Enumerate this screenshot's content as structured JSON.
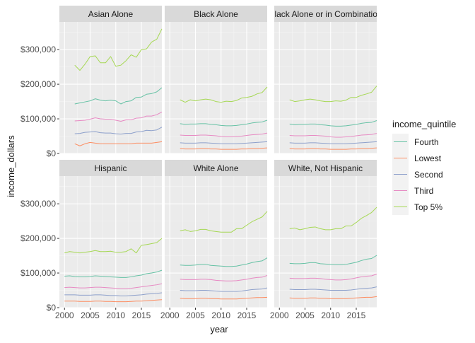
{
  "chart_data": {
    "type": "line",
    "facet_wrap": true,
    "x_label": "year",
    "y_label": "income_dollars",
    "x_range": [
      1999,
      2019
    ],
    "y_range": [
      0,
      380000
    ],
    "x_ticks": [
      2000,
      2005,
      2010,
      2015
    ],
    "y_ticks": [
      0,
      100000,
      200000,
      300000
    ],
    "y_tick_labels": [
      "$0",
      "$100,000",
      "$200,000",
      "$300,000"
    ],
    "grid": true,
    "legend": {
      "title": "income_quintile",
      "placement": "right",
      "entries": [
        "Fourth",
        "Lowest",
        "Second",
        "Third",
        "Top 5%"
      ]
    },
    "series_colors": {
      "Fourth": "#66c2a5",
      "Lowest": "#fc8d62",
      "Second": "#8da0cb",
      "Third": "#e78ac3",
      "Top 5%": "#a6d854"
    },
    "panels": [
      {
        "title": "Asian Alone",
        "x": [
          2002,
          2003,
          2004,
          2005,
          2006,
          2007,
          2008,
          2009,
          2010,
          2011,
          2012,
          2013,
          2014,
          2015,
          2016,
          2017,
          2018,
          2019
        ],
        "series": [
          {
            "name": "Fourth",
            "values": [
              143000,
              146000,
              149000,
              152000,
              158000,
              154000,
              152000,
              154000,
              152000,
              143000,
              150000,
              152000,
              162000,
              163000,
              171000,
              173000,
              178000,
              190000
            ]
          },
          {
            "name": "Lowest",
            "values": [
              28000,
              22000,
              28000,
              32000,
              30000,
              28000,
              28000,
              28000,
              28000,
              28000,
              28000,
              28000,
              30000,
              30000,
              30000,
              30000,
              32000,
              34000
            ]
          },
          {
            "name": "Second",
            "values": [
              57000,
              58000,
              61000,
              62000,
              63000,
              60000,
              59000,
              59000,
              57000,
              56000,
              58000,
              58000,
              62000,
              63000,
              67000,
              66000,
              68000,
              76000
            ]
          },
          {
            "name": "Third",
            "values": [
              94000,
              95000,
              96000,
              99000,
              103000,
              100000,
              99000,
              99000,
              96000,
              93000,
              97000,
              97000,
              102000,
              103000,
              108000,
              108000,
              112000,
              120000
            ]
          },
          {
            "name": "Top 5%",
            "values": [
              255000,
              240000,
              258000,
              280000,
              282000,
              262000,
              262000,
              280000,
              252000,
              255000,
              268000,
              285000,
              278000,
              300000,
              302000,
              322000,
              330000,
              360000
            ]
          }
        ]
      },
      {
        "title": "Black Alone",
        "x": [
          2002,
          2003,
          2004,
          2005,
          2006,
          2007,
          2008,
          2009,
          2010,
          2011,
          2012,
          2013,
          2014,
          2015,
          2016,
          2017,
          2018,
          2019
        ],
        "series": [
          {
            "name": "Fourth",
            "values": [
              86000,
              84000,
              85000,
              85000,
              86000,
              86000,
              84000,
              83000,
              81000,
              80000,
              80000,
              81000,
              83000,
              85000,
              88000,
              90000,
              91000,
              96000
            ]
          },
          {
            "name": "Lowest",
            "values": [
              14000,
              13000,
              13000,
              13000,
              14000,
              14000,
              13000,
              13000,
              12000,
              12000,
              12000,
              12000,
              13000,
              13000,
              14000,
              14000,
              15000,
              16000
            ]
          },
          {
            "name": "Second",
            "values": [
              31000,
              30000,
              30000,
              30000,
              31000,
              31000,
              30000,
              29000,
              28000,
              28000,
              28000,
              28000,
              29000,
              30000,
              31000,
              32000,
              33000,
              34000
            ]
          },
          {
            "name": "Third",
            "values": [
              53000,
              52000,
              52000,
              52000,
              53000,
              53000,
              52000,
              51000,
              49000,
              48000,
              48000,
              49000,
              50000,
              52000,
              54000,
              55000,
              56000,
              59000
            ]
          },
          {
            "name": "Top 5%",
            "values": [
              155000,
              148000,
              155000,
              152000,
              155000,
              157000,
              155000,
              150000,
              148000,
              151000,
              150000,
              153000,
              160000,
              162000,
              165000,
              172000,
              176000,
              192000
            ]
          }
        ]
      },
      {
        "title": "Black Alone or in Combination",
        "x": [
          2002,
          2003,
          2004,
          2005,
          2006,
          2007,
          2008,
          2009,
          2010,
          2011,
          2012,
          2013,
          2014,
          2015,
          2016,
          2017,
          2018,
          2019
        ],
        "series": [
          {
            "name": "Fourth",
            "values": [
              85000,
              83000,
              84000,
              84000,
              85000,
              85000,
              83000,
              82000,
              80000,
              79000,
              79000,
              80000,
              82000,
              84000,
              87000,
              89000,
              90000,
              95000
            ]
          },
          {
            "name": "Lowest",
            "values": [
              14000,
              13000,
              13000,
              13000,
              14000,
              14000,
              13000,
              13000,
              12000,
              12000,
              12000,
              12000,
              13000,
              13000,
              14000,
              14000,
              15000,
              16000
            ]
          },
          {
            "name": "Second",
            "values": [
              31000,
              30000,
              30000,
              30000,
              31000,
              31000,
              30000,
              29000,
              28000,
              28000,
              28000,
              28000,
              29000,
              30000,
              31000,
              32000,
              33000,
              34000
            ]
          },
          {
            "name": "Third",
            "values": [
              52000,
              51000,
              51000,
              51000,
              52000,
              52000,
              51000,
              50000,
              48000,
              47000,
              47000,
              48000,
              49000,
              51000,
              53000,
              54000,
              55000,
              58000
            ]
          },
          {
            "name": "Top 5%",
            "values": [
              155000,
              150000,
              152000,
              155000,
              157000,
              155000,
              152000,
              150000,
              150000,
              152000,
              151000,
              154000,
              162000,
              162000,
              168000,
              172000,
              177000,
              195000
            ]
          }
        ]
      },
      {
        "title": "Hispanic",
        "x": [
          2000,
          2001,
          2002,
          2003,
          2004,
          2005,
          2006,
          2007,
          2008,
          2009,
          2010,
          2011,
          2012,
          2013,
          2014,
          2015,
          2016,
          2017,
          2018,
          2019
        ],
        "series": [
          {
            "name": "Fourth",
            "values": [
              91000,
              92000,
              90000,
              89000,
              89000,
              90000,
              92000,
              91000,
              90000,
              89000,
              88000,
              87000,
              87000,
              89000,
              92000,
              94000,
              98000,
              100000,
              103000,
              108000
            ]
          },
          {
            "name": "Lowest",
            "values": [
              19000,
              19000,
              19000,
              18000,
              18000,
              18000,
              19000,
              19000,
              18000,
              18000,
              17000,
              17000,
              17000,
              18000,
              19000,
              19000,
              20000,
              21000,
              22000,
              23000
            ]
          },
          {
            "name": "Second",
            "values": [
              37000,
              37000,
              37000,
              36000,
              36000,
              36000,
              37000,
              37000,
              36000,
              35000,
              35000,
              34000,
              34000,
              35000,
              36000,
              37000,
              39000,
              40000,
              41000,
              43000
            ]
          },
          {
            "name": "Third",
            "values": [
              58000,
              59000,
              58000,
              57000,
              57000,
              58000,
              59000,
              59000,
              58000,
              57000,
              56000,
              55000,
              55000,
              56000,
              58000,
              60000,
              62000,
              64000,
              66000,
              69000
            ]
          },
          {
            "name": "Top 5%",
            "values": [
              158000,
              162000,
              160000,
              158000,
              160000,
              162000,
              165000,
              162000,
              162000,
              163000,
              160000,
              160000,
              162000,
              170000,
              158000,
              180000,
              182000,
              185000,
              188000,
              200000
            ]
          }
        ]
      },
      {
        "title": "White Alone",
        "x": [
          2002,
          2003,
          2004,
          2005,
          2006,
          2007,
          2008,
          2009,
          2010,
          2011,
          2012,
          2013,
          2014,
          2015,
          2016,
          2017,
          2018,
          2019
        ],
        "series": [
          {
            "name": "Fourth",
            "values": [
              123000,
              122000,
              122000,
              123000,
              125000,
              125000,
              122000,
              121000,
              120000,
              119000,
              119000,
              120000,
              123000,
              126000,
              130000,
              133000,
              135000,
              144000
            ]
          },
          {
            "name": "Lowest",
            "values": [
              27000,
              26000,
              26000,
              26000,
              27000,
              27000,
              26000,
              26000,
              25000,
              25000,
              25000,
              25000,
              26000,
              27000,
              28000,
              29000,
              29000,
              30000
            ]
          },
          {
            "name": "Second",
            "values": [
              50000,
              49000,
              49000,
              49000,
              50000,
              50000,
              49000,
              48000,
              47000,
              47000,
              47000,
              47000,
              48000,
              50000,
              52000,
              53000,
              54000,
              57000
            ]
          },
          {
            "name": "Third",
            "values": [
              82000,
              81000,
              81000,
              81000,
              82000,
              82000,
              81000,
              79000,
              78000,
              77000,
              77000,
              78000,
              80000,
              82000,
              85000,
              87000,
              88000,
              93000
            ]
          },
          {
            "name": "Top 5%",
            "values": [
              222000,
              225000,
              220000,
              222000,
              226000,
              226000,
              222000,
              220000,
              218000,
              218000,
              218000,
              228000,
              228000,
              238000,
              248000,
              255000,
              262000,
              278000
            ]
          }
        ]
      },
      {
        "title": "White, Not Hispanic",
        "x": [
          2002,
          2003,
          2004,
          2005,
          2006,
          2007,
          2008,
          2009,
          2010,
          2011,
          2012,
          2013,
          2014,
          2015,
          2016,
          2017,
          2018,
          2019
        ],
        "series": [
          {
            "name": "Fourth",
            "values": [
              128000,
              127000,
              127000,
              128000,
              130000,
              130000,
              127000,
              126000,
              125000,
              124000,
              124000,
              125000,
              128000,
              131000,
              136000,
              140000,
              142000,
              151000
            ]
          },
          {
            "name": "Lowest",
            "values": [
              28000,
              27000,
              27000,
              27000,
              28000,
              28000,
              27000,
              27000,
              26000,
              26000,
              26000,
              26000,
              27000,
              28000,
              29000,
              30000,
              30000,
              32000
            ]
          },
          {
            "name": "Second",
            "values": [
              53000,
              52000,
              52000,
              52000,
              53000,
              53000,
              52000,
              51000,
              50000,
              50000,
              50000,
              50000,
              51000,
              53000,
              55000,
              56000,
              57000,
              60000
            ]
          },
          {
            "name": "Third",
            "values": [
              85000,
              84000,
              84000,
              84000,
              85000,
              85000,
              84000,
              82000,
              81000,
              80000,
              80000,
              81000,
              83000,
              86000,
              89000,
              91000,
              92000,
              97000
            ]
          },
          {
            "name": "Top 5%",
            "values": [
              228000,
              230000,
              225000,
              228000,
              232000,
              233000,
              228000,
              225000,
              225000,
              228000,
              228000,
              236000,
              236000,
              246000,
              258000,
              266000,
              275000,
              290000
            ]
          }
        ]
      }
    ]
  }
}
